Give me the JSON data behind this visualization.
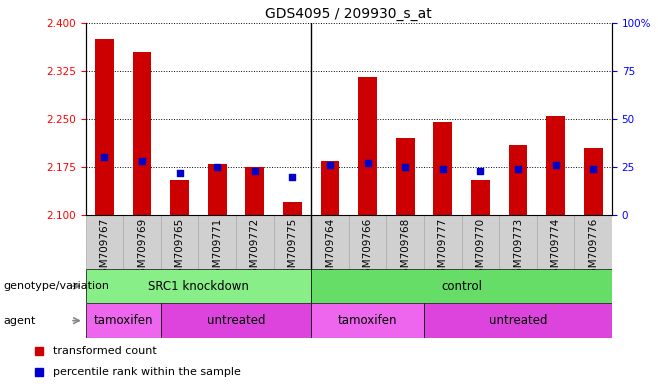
{
  "title": "GDS4095 / 209930_s_at",
  "samples": [
    "GSM709767",
    "GSM709769",
    "GSM709765",
    "GSM709771",
    "GSM709772",
    "GSM709775",
    "GSM709764",
    "GSM709766",
    "GSM709768",
    "GSM709777",
    "GSM709770",
    "GSM709773",
    "GSM709774",
    "GSM709776"
  ],
  "bar_values": [
    2.375,
    2.355,
    2.155,
    2.18,
    2.175,
    2.12,
    2.185,
    2.315,
    2.22,
    2.245,
    2.155,
    2.21,
    2.255,
    2.205
  ],
  "percentile_values": [
    30,
    28,
    22,
    25,
    23,
    20,
    26,
    27,
    25,
    24,
    23,
    24,
    26,
    24
  ],
  "ymin": 2.1,
  "ymax": 2.4,
  "y_ticks": [
    2.1,
    2.175,
    2.25,
    2.325,
    2.4
  ],
  "y2min": 0,
  "y2max": 100,
  "y2_ticks": [
    0,
    25,
    50,
    75,
    100
  ],
  "bar_color": "#cc0000",
  "percentile_color": "#0000cc",
  "bar_width": 0.5,
  "grid_color": "black",
  "background_color": "#ffffff",
  "plot_bg_color": "#ffffff",
  "xticklabel_bg": "#d0d0d0",
  "genotype_groups": [
    {
      "label": "SRC1 knockdown",
      "start": 0,
      "end": 6,
      "color": "#88ee88"
    },
    {
      "label": "control",
      "start": 6,
      "end": 14,
      "color": "#66dd66"
    }
  ],
  "agent_groups": [
    {
      "label": "tamoxifen",
      "start": 0,
      "end": 2,
      "color": "#ee66ee"
    },
    {
      "label": "untreated",
      "start": 2,
      "end": 6,
      "color": "#dd44dd"
    },
    {
      "label": "tamoxifen",
      "start": 6,
      "end": 9,
      "color": "#ee66ee"
    },
    {
      "label": "untreated",
      "start": 9,
      "end": 14,
      "color": "#dd44dd"
    }
  ],
  "legend_items": [
    {
      "label": "transformed count",
      "color": "#cc0000"
    },
    {
      "label": "percentile rank within the sample",
      "color": "#0000cc"
    }
  ],
  "left_labels": [
    "genotype/variation",
    "agent"
  ],
  "title_fontsize": 10,
  "tick_fontsize": 7.5,
  "label_fontsize": 8,
  "row_fontsize": 8.5
}
